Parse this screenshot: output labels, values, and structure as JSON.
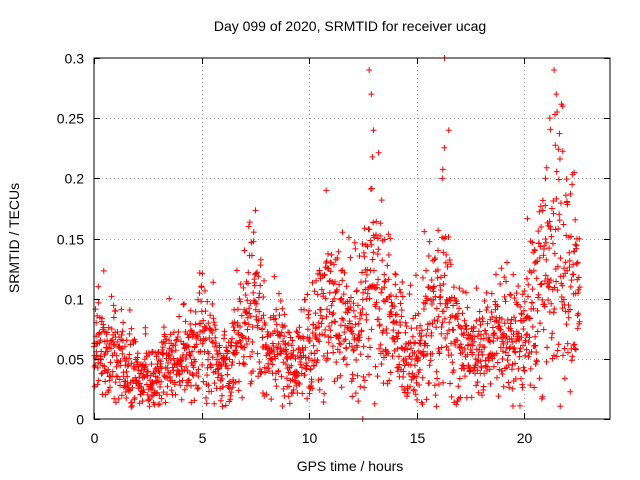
{
  "chart_data": {
    "type": "scatter",
    "title": "Day 099 of 2020, SRMTID for receiver ucag",
    "xlabel": "GPS time / hours",
    "ylabel": "SRMTID / TECUs",
    "xlim": [
      0,
      24
    ],
    "ylim": [
      0,
      0.3
    ],
    "x_ticks": [
      0,
      5,
      10,
      15,
      20
    ],
    "x_tick_labels": [
      "0",
      "5",
      "10",
      "15",
      "20"
    ],
    "y_ticks": [
      0,
      0.05,
      0.1,
      0.15,
      0.2,
      0.25,
      0.3
    ],
    "y_tick_labels": [
      "0",
      "0.05",
      "0.1",
      "0.15",
      "0.2",
      "0.25",
      "0.3"
    ],
    "grid": true,
    "marker": "plus",
    "series": [
      {
        "name": "SRMTID",
        "color": "#ff0000",
        "data_hour_range": [
          0,
          22.6
        ],
        "representative_points": [
          [
            0.0,
            0.06
          ],
          [
            0.1,
            0.08
          ],
          [
            0.2,
            0.11
          ],
          [
            0.3,
            0.05
          ],
          [
            0.5,
            0.04
          ],
          [
            1.0,
            0.09
          ],
          [
            1.5,
            0.05
          ],
          [
            2.0,
            0.03
          ],
          [
            2.5,
            0.02
          ],
          [
            3.0,
            0.04
          ],
          [
            3.5,
            0.1
          ],
          [
            4.0,
            0.05
          ],
          [
            4.5,
            0.09
          ],
          [
            5.0,
            0.11
          ],
          [
            6.0,
            0.05
          ],
          [
            6.5,
            0.03
          ],
          [
            7.0,
            0.14
          ],
          [
            7.2,
            0.16
          ],
          [
            7.5,
            0.12
          ],
          [
            8.0,
            0.06
          ],
          [
            9.0,
            0.05
          ],
          [
            9.5,
            0.03
          ],
          [
            10.0,
            0.09
          ],
          [
            10.5,
            0.07
          ],
          [
            10.8,
            0.19
          ],
          [
            11.0,
            0.13
          ],
          [
            11.5,
            0.1
          ],
          [
            12.0,
            0.06
          ],
          [
            12.5,
            0.0
          ],
          [
            12.8,
            0.29
          ],
          [
            12.9,
            0.27
          ],
          [
            13.0,
            0.24
          ],
          [
            13.2,
            0.15
          ],
          [
            13.5,
            0.12
          ],
          [
            14.0,
            0.08
          ],
          [
            14.5,
            0.05
          ],
          [
            15.0,
            0.03
          ],
          [
            15.5,
            0.1
          ],
          [
            16.0,
            0.14
          ],
          [
            16.2,
            0.2
          ],
          [
            16.3,
            0.3
          ],
          [
            16.5,
            0.24
          ],
          [
            17.0,
            0.06
          ],
          [
            17.5,
            0.04
          ],
          [
            18.0,
            0.07
          ],
          [
            19.0,
            0.05
          ],
          [
            19.5,
            0.12
          ],
          [
            20.0,
            0.09
          ],
          [
            20.5,
            0.14
          ],
          [
            21.0,
            0.2
          ],
          [
            21.2,
            0.25
          ],
          [
            21.4,
            0.29
          ],
          [
            21.5,
            0.27
          ],
          [
            21.8,
            0.26
          ],
          [
            22.0,
            0.18
          ],
          [
            22.3,
            0.12
          ],
          [
            22.5,
            0.13
          ]
        ]
      }
    ]
  }
}
